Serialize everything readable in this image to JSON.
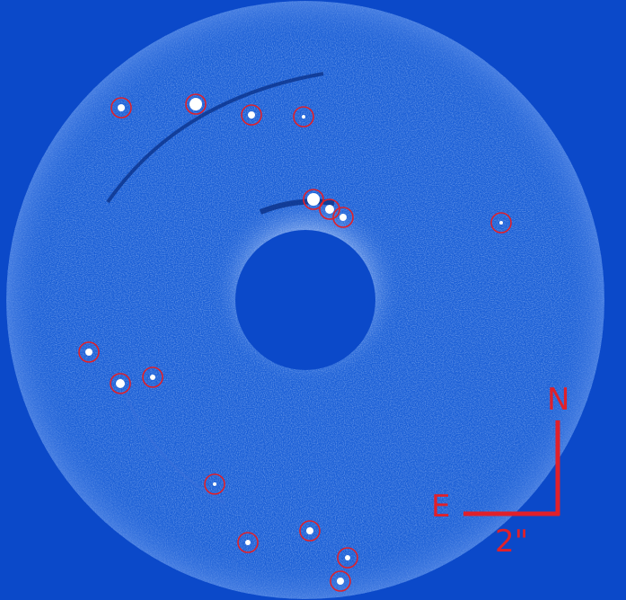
{
  "image": {
    "description_colors": {
      "background": "#0b49c9",
      "field": "#1b5fd6",
      "noise_light": "#8fb6ff",
      "marker": "#e0202a",
      "source": "#ffffff"
    }
  },
  "compass": {
    "north_label": "N",
    "east_label": "E",
    "scale_label": "2\""
  },
  "markers": [
    {
      "id": "m1"
    },
    {
      "id": "m2"
    },
    {
      "id": "m3"
    },
    {
      "id": "m4"
    },
    {
      "id": "m5"
    },
    {
      "id": "m6"
    },
    {
      "id": "m7"
    },
    {
      "id": "m8"
    },
    {
      "id": "m9"
    },
    {
      "id": "m10"
    },
    {
      "id": "m11"
    },
    {
      "id": "m12"
    },
    {
      "id": "m13"
    },
    {
      "id": "m14"
    },
    {
      "id": "m15"
    },
    {
      "id": "m16"
    },
    {
      "id": "m17"
    }
  ]
}
